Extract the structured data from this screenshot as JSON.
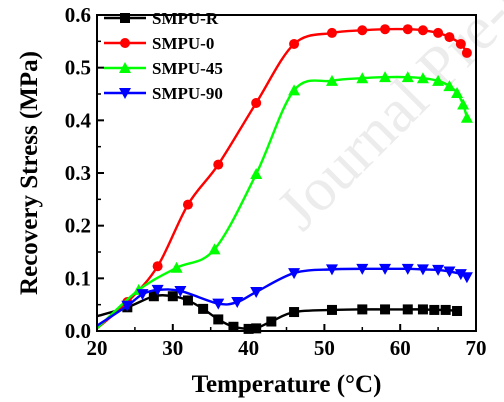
{
  "watermark": "Journal Pre-proof",
  "chart_data": {
    "type": "line",
    "xlabel": "Temperature (°C)",
    "ylabel": "Recovery Stress (MPa)",
    "xlim": [
      20,
      70
    ],
    "ylim": [
      0.0,
      0.6
    ],
    "xticks": [
      "20",
      "30",
      "40",
      "50",
      "60",
      "70"
    ],
    "yticks": [
      "0.0",
      "0.1",
      "0.2",
      "0.3",
      "0.4",
      "0.5",
      "0.6"
    ],
    "grid": false,
    "legend_position": "top-left",
    "series": [
      {
        "name": "SMPU-R",
        "color": "#000000",
        "marker": "square",
        "x": [
          20,
          24,
          27.5,
          30,
          32,
          34,
          36,
          38,
          40,
          41,
          43,
          46,
          51,
          55,
          58,
          61,
          63,
          64.5,
          66,
          67.5
        ],
        "y": [
          0.028,
          0.045,
          0.066,
          0.066,
          0.058,
          0.042,
          0.022,
          0.008,
          0.004,
          0.005,
          0.018,
          0.036,
          0.04,
          0.041,
          0.041,
          0.041,
          0.041,
          0.04,
          0.04,
          0.038
        ]
      },
      {
        "name": "SMPU-0",
        "color": "#ff0000",
        "marker": "circle",
        "x": [
          20,
          24,
          28,
          32,
          36,
          41,
          46,
          51,
          55,
          58,
          61,
          63,
          65,
          66.5,
          68,
          68.8
        ],
        "y": [
          0.005,
          0.055,
          0.123,
          0.24,
          0.316,
          0.433,
          0.545,
          0.566,
          0.571,
          0.573,
          0.573,
          0.571,
          0.566,
          0.558,
          0.545,
          0.528
        ]
      },
      {
        "name": "SMPU-45",
        "color": "#00ff00",
        "marker": "triangle-up",
        "x": [
          20,
          25.5,
          30.5,
          35.5,
          41,
          46,
          51,
          55,
          58,
          61,
          63,
          65,
          66.5,
          67.5,
          68.3,
          68.8
        ],
        "y": [
          0.005,
          0.078,
          0.12,
          0.155,
          0.298,
          0.457,
          0.475,
          0.48,
          0.482,
          0.482,
          0.48,
          0.475,
          0.465,
          0.452,
          0.43,
          0.405
        ]
      },
      {
        "name": "SMPU-90",
        "color": "#0000ff",
        "marker": "triangle-down",
        "x": [
          20,
          24,
          26,
          28,
          31,
          36,
          38.5,
          41,
          46,
          51,
          55,
          58,
          61,
          63,
          65,
          66.5,
          68,
          68.8
        ],
        "y": [
          0.01,
          0.048,
          0.07,
          0.078,
          0.076,
          0.052,
          0.055,
          0.074,
          0.11,
          0.117,
          0.118,
          0.118,
          0.118,
          0.117,
          0.116,
          0.113,
          0.108,
          0.102
        ]
      }
    ]
  }
}
